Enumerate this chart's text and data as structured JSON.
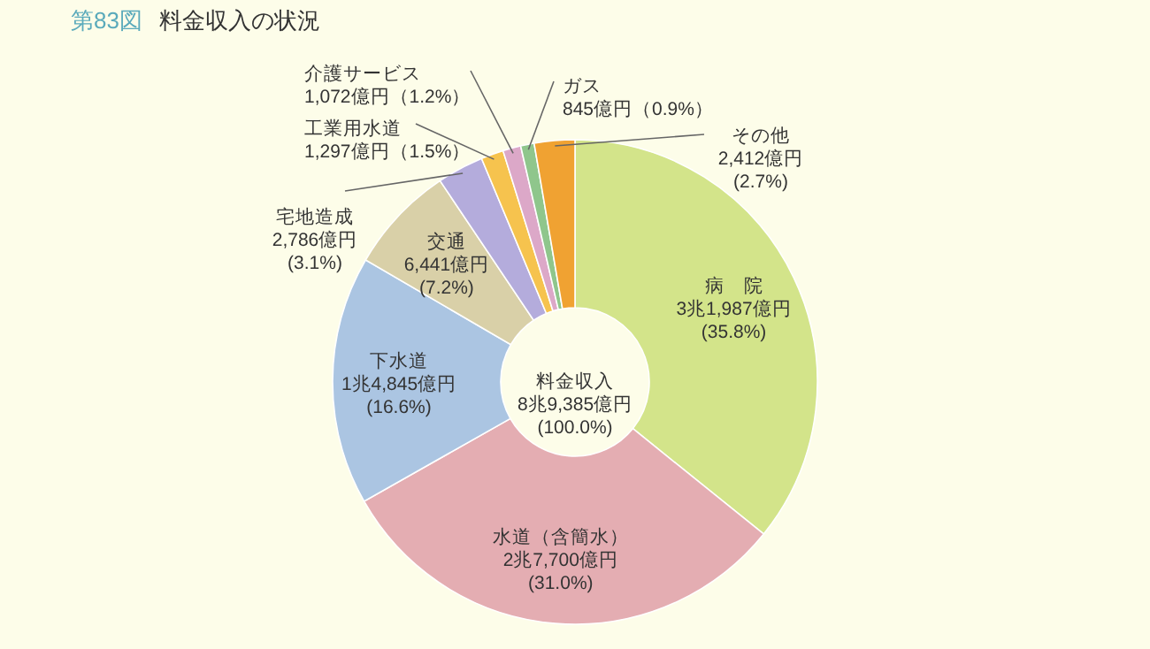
{
  "chart_data": {
    "type": "donut",
    "subtitle": "第83図",
    "title": "料金収入の状況",
    "categories": [
      "病　院",
      "水道（含簡水）",
      "下水道",
      "交通",
      "宅地造成",
      "工業用水道",
      "介護サービス",
      "ガス",
      "その他"
    ],
    "values": [
      35.8,
      31.0,
      16.6,
      7.2,
      3.1,
      1.5,
      1.2,
      0.9,
      2.7
    ],
    "colors": [
      "#d3e48a",
      "#e4adb2",
      "#abc5e2",
      "#d9d0a8",
      "#b4acdc",
      "#f6c34e",
      "#dca8c8",
      "#8fc68c",
      "#f0a232"
    ],
    "value_labels": [
      "3兆1,987億円\n(35.8%)",
      "2兆7,700億円\n(31.0%)",
      "1兆4,845億円\n(16.6%)",
      "6,441億円\n(7.2%)",
      "2,786億円\n(3.1%)",
      "1,297億円（1.5%）",
      "1,072億円（1.2%）",
      "845億円（0.9%）",
      "2,412億円\n(2.7%)"
    ],
    "annotations": [
      "料金収入\n8兆9,385億円\n(100.0%)"
    ]
  }
}
